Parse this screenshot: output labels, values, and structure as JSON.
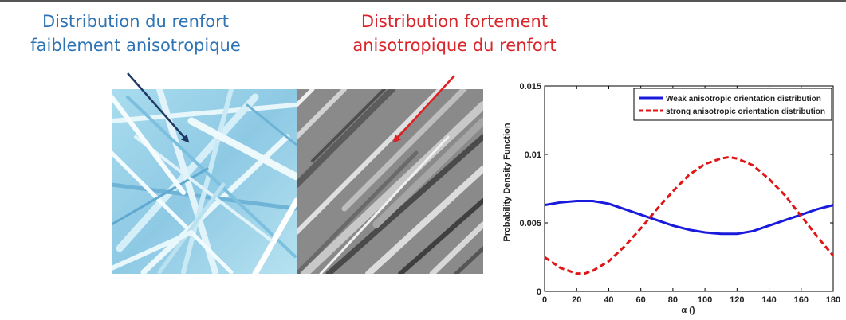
{
  "captions": {
    "left_line1": "Distribution du renfort",
    "left_line2": "faiblement anisotropique",
    "right_line1": "Distribution fortement",
    "right_line2": "anisotropique du renfort"
  },
  "colors": {
    "left_caption": "#2e74b5",
    "right_caption": "#d9262b",
    "left_arrow": "#1f3864",
    "right_arrow": "#e02020",
    "weak_series": "#1a1adc",
    "strong_series": "#e01515"
  },
  "chart_data": {
    "type": "line",
    "ylabel": "Probability Density Function",
    "xlabel": "α (̊)",
    "xlim": [
      0,
      180
    ],
    "ylim": [
      0,
      0.015
    ],
    "xticks": [
      0,
      20,
      40,
      60,
      80,
      100,
      120,
      140,
      160,
      180
    ],
    "xtick_labels": [
      "0",
      "20",
      "40",
      "60",
      "80",
      "100",
      "120",
      "140",
      "160",
      "180"
    ],
    "yticks": [
      0,
      0.005,
      0.01,
      0.015
    ],
    "ytick_labels": [
      "0",
      "0.005",
      "0.01",
      "0.015"
    ],
    "grid": false,
    "legend_position": "top-right",
    "x": [
      0,
      10,
      20,
      25,
      30,
      40,
      50,
      60,
      70,
      80,
      90,
      100,
      110,
      115,
      120,
      130,
      140,
      150,
      160,
      170,
      180
    ],
    "series": [
      {
        "name": "Weak anisotropic orientation distribution",
        "style": "solid",
        "values": [
          0.0063,
          0.0065,
          0.0066,
          0.0066,
          0.0066,
          0.0064,
          0.006,
          0.0056,
          0.0052,
          0.0048,
          0.0045,
          0.0043,
          0.0042,
          0.0042,
          0.0042,
          0.0044,
          0.0048,
          0.0052,
          0.0056,
          0.006,
          0.0063
        ]
      },
      {
        "name": "strong anisotropic orientation distribution",
        "style": "dashed",
        "values": [
          0.0025,
          0.0017,
          0.0013,
          0.0013,
          0.0015,
          0.0022,
          0.0033,
          0.0046,
          0.006,
          0.0073,
          0.0085,
          0.0093,
          0.0097,
          0.0098,
          0.0097,
          0.0092,
          0.0082,
          0.007,
          0.0055,
          0.004,
          0.0026
        ]
      }
    ]
  }
}
